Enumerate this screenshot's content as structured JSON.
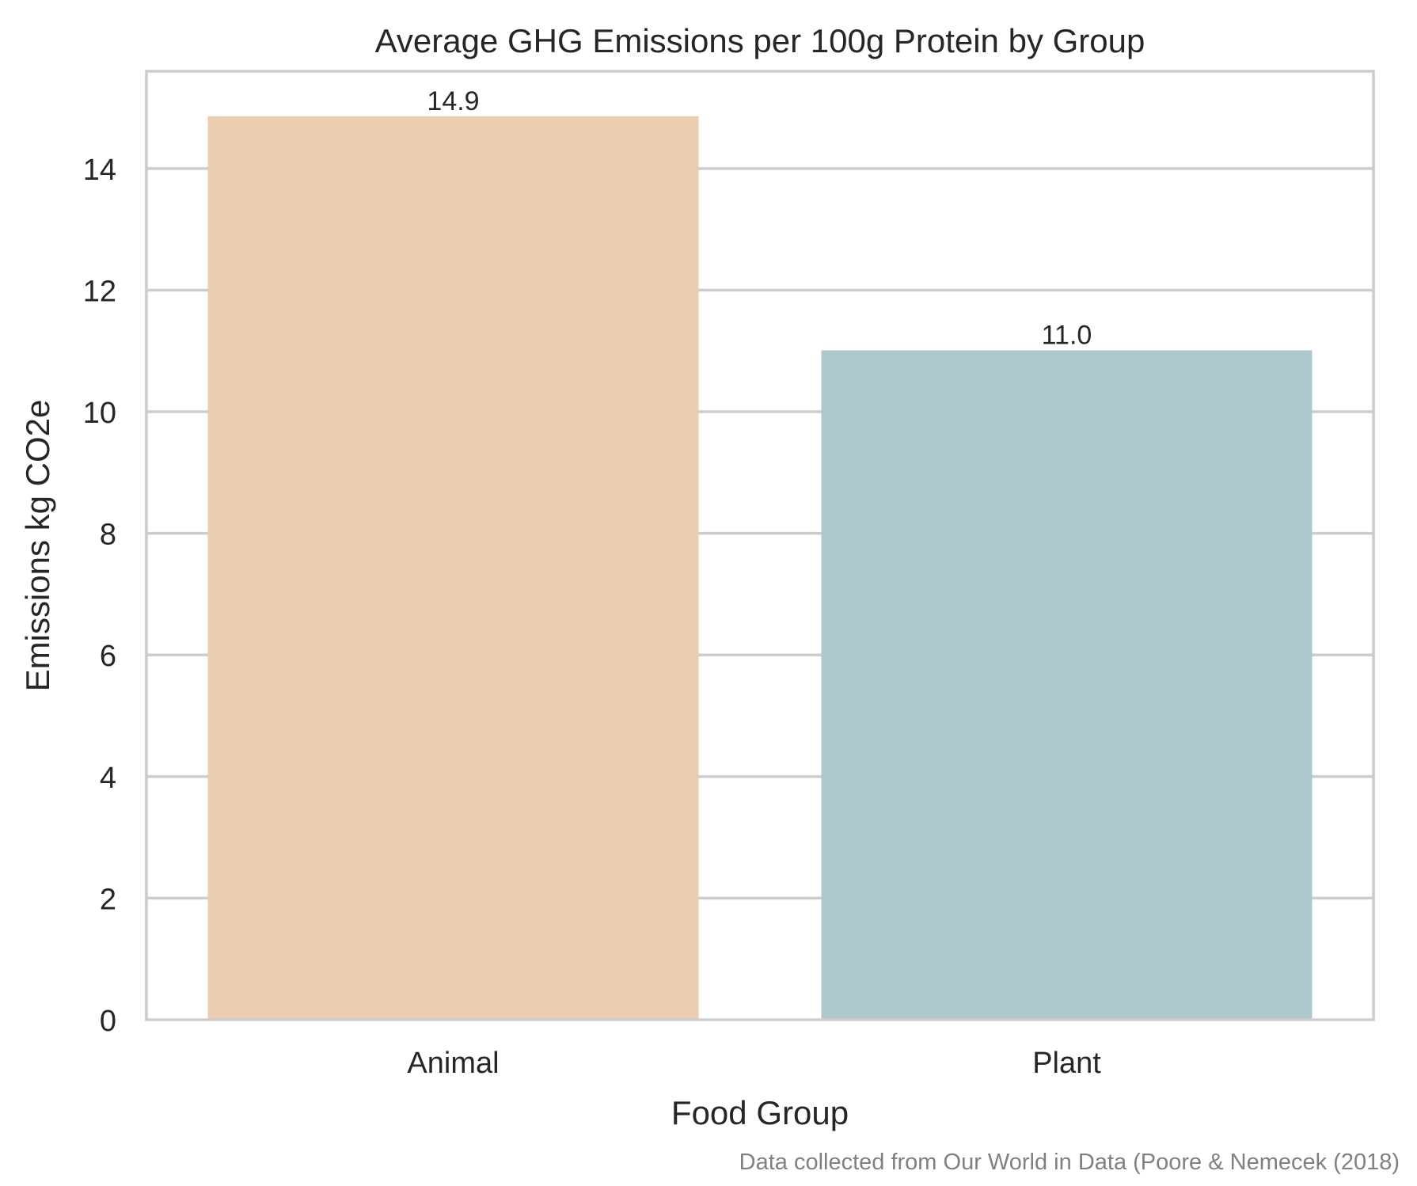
{
  "chart_data": {
    "type": "bar",
    "title": "Average GHG Emissions per 100g Protein by Group",
    "xlabel": "Food Group",
    "ylabel": "Emissions kg CO2e",
    "categories": [
      "Animal",
      "Plant"
    ],
    "values": [
      14.86,
      11.01
    ],
    "value_labels": [
      "14.9",
      "11.0"
    ],
    "bar_colors": [
      "#eacdb0",
      "#adc8cd"
    ],
    "ylim": [
      0,
      15.6
    ],
    "yticks": [
      0,
      2,
      4,
      6,
      8,
      10,
      12,
      14
    ],
    "ytick_labels": [
      "0",
      "2",
      "4",
      "6",
      "8",
      "10",
      "12",
      "14"
    ],
    "grid": "horizontal",
    "legend": "none",
    "caption": "Data collected from Our World in Data (Poore & Nemecek (2018)"
  },
  "colors": {
    "grid": "#cccccc",
    "spine": "#cccccc",
    "text": "#262626",
    "caption": "#808080",
    "background": "#ffffff"
  }
}
